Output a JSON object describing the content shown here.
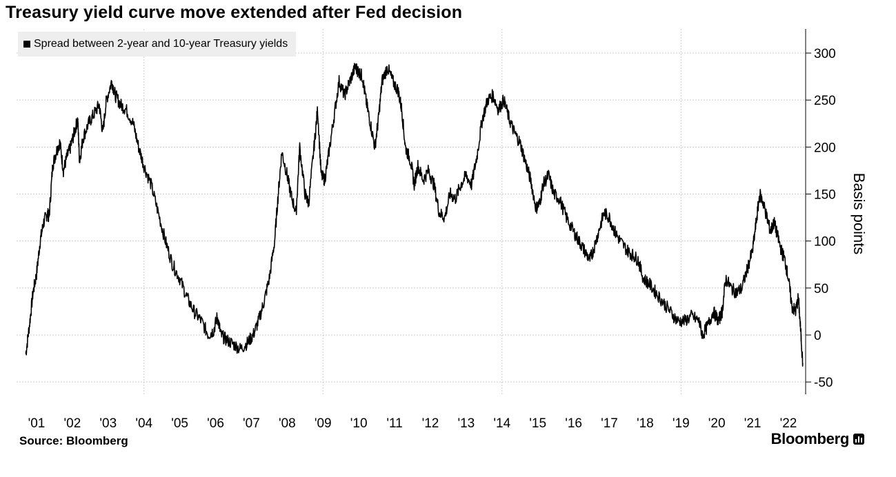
{
  "header": {
    "title": "Treasury yield curve move extended after Fed decision"
  },
  "footer": {
    "source": "Source: Bloomberg",
    "brand": "Bloomberg"
  },
  "icons": {
    "brand_logo": "bloomberg-terminal-icon"
  },
  "colors": {
    "line": "#000000",
    "legend_bg": "#eeeeee",
    "grid": "#cccccc"
  },
  "chart_data": {
    "type": "line",
    "title": "Treasury yield curve move extended after Fed decision",
    "ylabel": "Basis points",
    "xlabel": "",
    "ylim": [
      -60,
      330
    ],
    "yticks": [
      300,
      250,
      200,
      150,
      100,
      50,
      0,
      -50
    ],
    "xlim": [
      2000.65,
      2022.4
    ],
    "x_tick_labels": [
      "'01",
      "'02",
      "'03",
      "'04",
      "'05",
      "'06",
      "'07",
      "'08",
      "'09",
      "'10",
      "'11",
      "'12",
      "'13",
      "'14",
      "'15",
      "'16",
      "'17",
      "'18",
      "'19",
      "'20",
      "'21",
      "'22"
    ],
    "x_tick_years": [
      2001,
      2002,
      2003,
      2004,
      2005,
      2006,
      2007,
      2008,
      2009,
      2010,
      2011,
      2012,
      2013,
      2014,
      2015,
      2016,
      2017,
      2018,
      2019,
      2020,
      2021,
      2022
    ],
    "grid": true,
    "legend_position": "top-left",
    "series": [
      {
        "name": "Spread between 2-year and 10-year Treasury yields",
        "points": [
          [
            2000.7,
            -20
          ],
          [
            2000.8,
            10
          ],
          [
            2000.9,
            45
          ],
          [
            2001.0,
            65
          ],
          [
            2001.1,
            100
          ],
          [
            2001.2,
            120
          ],
          [
            2001.3,
            130
          ],
          [
            2001.35,
            125
          ],
          [
            2001.45,
            180
          ],
          [
            2001.55,
            195
          ],
          [
            2001.65,
            205
          ],
          [
            2001.75,
            175
          ],
          [
            2001.85,
            190
          ],
          [
            2001.95,
            200
          ],
          [
            2002.05,
            215
          ],
          [
            2002.15,
            230
          ],
          [
            2002.2,
            185
          ],
          [
            2002.3,
            210
          ],
          [
            2002.45,
            225
          ],
          [
            2002.6,
            235
          ],
          [
            2002.75,
            245
          ],
          [
            2002.85,
            215
          ],
          [
            2002.95,
            250
          ],
          [
            2003.1,
            270
          ],
          [
            2003.2,
            255
          ],
          [
            2003.35,
            245
          ],
          [
            2003.5,
            240
          ],
          [
            2003.7,
            225
          ],
          [
            2003.85,
            200
          ],
          [
            2004.0,
            180
          ],
          [
            2004.2,
            160
          ],
          [
            2004.4,
            130
          ],
          [
            2004.6,
            100
          ],
          [
            2004.8,
            75
          ],
          [
            2005.0,
            60
          ],
          [
            2005.2,
            40
          ],
          [
            2005.4,
            25
          ],
          [
            2005.6,
            15
          ],
          [
            2005.8,
            0
          ],
          [
            2005.95,
            5
          ],
          [
            2006.05,
            20
          ],
          [
            2006.15,
            0
          ],
          [
            2006.3,
            -5
          ],
          [
            2006.5,
            -10
          ],
          [
            2006.7,
            -15
          ],
          [
            2006.9,
            -8
          ],
          [
            2007.05,
            0
          ],
          [
            2007.2,
            15
          ],
          [
            2007.35,
            35
          ],
          [
            2007.5,
            60
          ],
          [
            2007.65,
            100
          ],
          [
            2007.75,
            150
          ],
          [
            2007.85,
            195
          ],
          [
            2008.0,
            170
          ],
          [
            2008.1,
            150
          ],
          [
            2008.25,
            130
          ],
          [
            2008.35,
            200
          ],
          [
            2008.5,
            150
          ],
          [
            2008.6,
            140
          ],
          [
            2008.75,
            200
          ],
          [
            2008.85,
            240
          ],
          [
            2008.95,
            170
          ],
          [
            2009.05,
            165
          ],
          [
            2009.15,
            190
          ],
          [
            2009.3,
            230
          ],
          [
            2009.45,
            270
          ],
          [
            2009.6,
            255
          ],
          [
            2009.75,
            270
          ],
          [
            2009.9,
            285
          ],
          [
            2010.0,
            280
          ],
          [
            2010.1,
            275
          ],
          [
            2010.2,
            250
          ],
          [
            2010.3,
            230
          ],
          [
            2010.45,
            200
          ],
          [
            2010.55,
            230
          ],
          [
            2010.65,
            270
          ],
          [
            2010.8,
            285
          ],
          [
            2010.95,
            270
          ],
          [
            2011.1,
            260
          ],
          [
            2011.2,
            240
          ],
          [
            2011.3,
            200
          ],
          [
            2011.45,
            185
          ],
          [
            2011.55,
            160
          ],
          [
            2011.65,
            180
          ],
          [
            2011.8,
            165
          ],
          [
            2011.95,
            175
          ],
          [
            2012.1,
            160
          ],
          [
            2012.25,
            130
          ],
          [
            2012.4,
            125
          ],
          [
            2012.55,
            150
          ],
          [
            2012.7,
            145
          ],
          [
            2012.85,
            160
          ],
          [
            2013.0,
            170
          ],
          [
            2013.15,
            160
          ],
          [
            2013.3,
            190
          ],
          [
            2013.45,
            230
          ],
          [
            2013.6,
            250
          ],
          [
            2013.75,
            255
          ],
          [
            2013.9,
            240
          ],
          [
            2014.05,
            250
          ],
          [
            2014.2,
            230
          ],
          [
            2014.35,
            215
          ],
          [
            2014.5,
            205
          ],
          [
            2014.65,
            185
          ],
          [
            2014.8,
            165
          ],
          [
            2014.95,
            135
          ],
          [
            2015.05,
            140
          ],
          [
            2015.15,
            160
          ],
          [
            2015.3,
            170
          ],
          [
            2015.45,
            150
          ],
          [
            2015.6,
            145
          ],
          [
            2015.8,
            125
          ],
          [
            2016.0,
            110
          ],
          [
            2016.15,
            100
          ],
          [
            2016.3,
            90
          ],
          [
            2016.45,
            80
          ],
          [
            2016.55,
            90
          ],
          [
            2016.7,
            110
          ],
          [
            2016.85,
            130
          ],
          [
            2017.0,
            125
          ],
          [
            2017.15,
            110
          ],
          [
            2017.3,
            100
          ],
          [
            2017.5,
            90
          ],
          [
            2017.65,
            85
          ],
          [
            2017.8,
            80
          ],
          [
            2017.95,
            60
          ],
          [
            2018.1,
            55
          ],
          [
            2018.3,
            45
          ],
          [
            2018.5,
            35
          ],
          [
            2018.7,
            25
          ],
          [
            2018.9,
            15
          ],
          [
            2019.1,
            15
          ],
          [
            2019.3,
            20
          ],
          [
            2019.5,
            15
          ],
          [
            2019.6,
            0
          ],
          [
            2019.75,
            10
          ],
          [
            2019.9,
            25
          ],
          [
            2020.05,
            15
          ],
          [
            2020.15,
            25
          ],
          [
            2020.25,
            60
          ],
          [
            2020.4,
            50
          ],
          [
            2020.55,
            45
          ],
          [
            2020.7,
            50
          ],
          [
            2020.85,
            70
          ],
          [
            2021.0,
            90
          ],
          [
            2021.1,
            120
          ],
          [
            2021.2,
            150
          ],
          [
            2021.3,
            140
          ],
          [
            2021.4,
            125
          ],
          [
            2021.5,
            110
          ],
          [
            2021.6,
            120
          ],
          [
            2021.7,
            105
          ],
          [
            2021.8,
            90
          ],
          [
            2021.9,
            80
          ],
          [
            2022.0,
            60
          ],
          [
            2022.1,
            30
          ],
          [
            2022.2,
            25
          ],
          [
            2022.28,
            40
          ],
          [
            2022.35,
            0
          ],
          [
            2022.4,
            -30
          ]
        ]
      }
    ]
  }
}
